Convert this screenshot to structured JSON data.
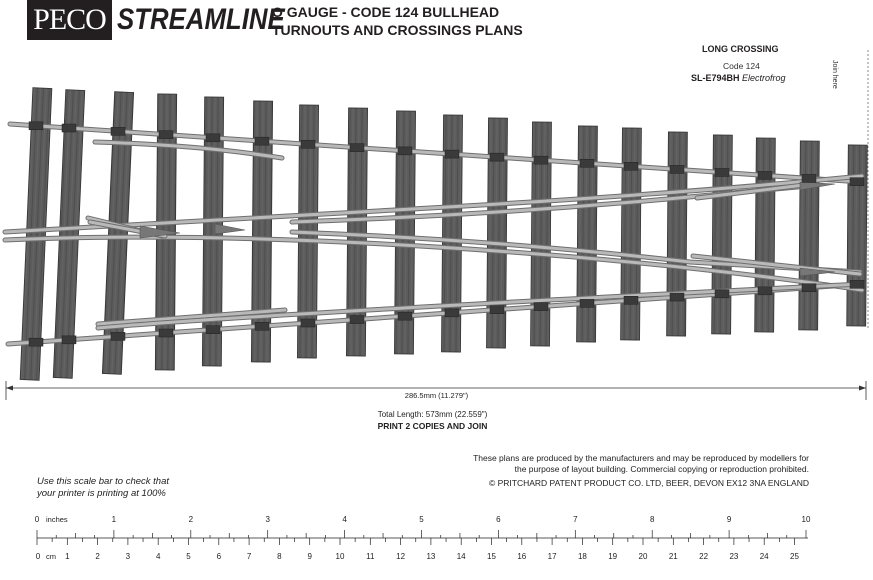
{
  "header": {
    "brand_peco": "PECO",
    "brand_streamline": "STREAMLINE",
    "title_line1": "O GAUGE - CODE 124 BULLHEAD",
    "title_line2": "TURNOUTS AND CROSSINGS PLANS"
  },
  "plan": {
    "name": "LONG CROSSING",
    "code": "Code 124",
    "catalogue": "SL-E794BH",
    "frog": "Electrofrog",
    "join_here": "Join here"
  },
  "dimensions": {
    "length_label": "286.5mm (11.279\")",
    "total_length": "Total Length: 573mm (22.559\")",
    "print_instruction": "PRINT 2 COPIES AND JOIN"
  },
  "notice": {
    "line1": "These plans are produced by the manufacturers and may be reproduced by modellers for",
    "line2": "the purpose of layout building. Commercial copying or reproduction prohibited.",
    "copyright": "© PRITCHARD PATENT PRODUCT CO. LTD, BEER, DEVON EX12 3NA ENGLAND"
  },
  "scale_bar": {
    "note_line1": "Use this scale bar to check that",
    "note_line2": "your printer is printing at 100%",
    "inches_label": "inches",
    "cm_label": "cm",
    "inch_ticks": [
      "0",
      "1",
      "2",
      "3",
      "4",
      "5",
      "6",
      "7",
      "8",
      "9",
      "10"
    ],
    "cm_ticks": [
      "0",
      "1",
      "2",
      "3",
      "4",
      "5",
      "6",
      "7",
      "8",
      "9",
      "10",
      "11",
      "12",
      "13",
      "14",
      "15",
      "16",
      "17",
      "18",
      "19",
      "20",
      "21",
      "22",
      "23",
      "24",
      "25"
    ]
  },
  "colors": {
    "sleeper": "#5a5a5a",
    "sleeper_edge": "#333333",
    "rail": "#b9b9b9",
    "rail_edge": "#6f6f6f",
    "logo_bg": "#231f20"
  }
}
